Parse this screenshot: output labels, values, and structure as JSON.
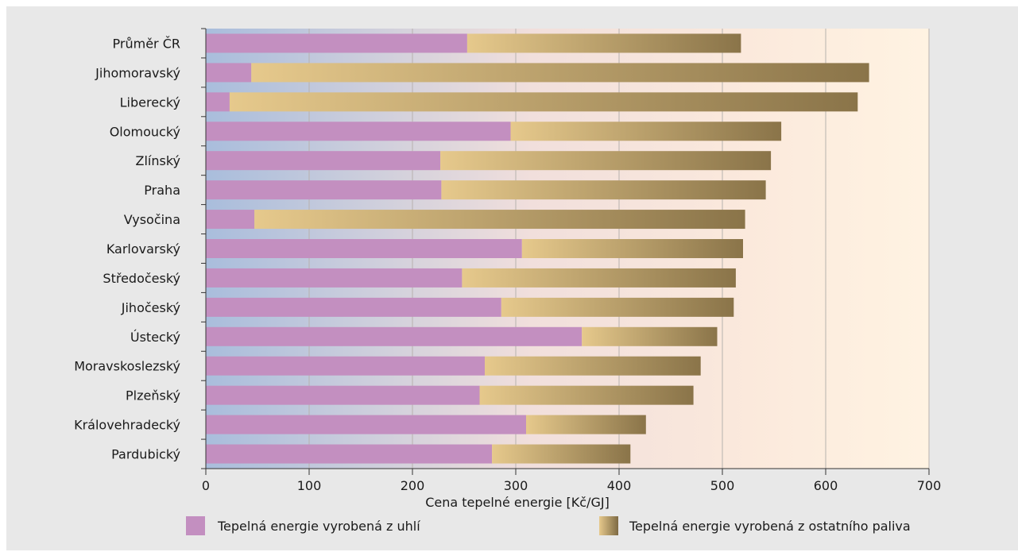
{
  "chart_data": {
    "type": "bar",
    "orientation": "horizontal",
    "stacked": true,
    "categories": [
      "Průměr ČR",
      "Jihomoravský",
      "Liberecký",
      "Olomoucký",
      "Zlínský",
      "Praha",
      "Vysočina",
      "Karlovarský",
      "Středočeský",
      "Jihočeský",
      "Ústecký",
      "Moravskoslezský",
      "Plzeňský",
      "Královehradecký",
      "Pardubický"
    ],
    "series": [
      {
        "name": "Tepelná energie vyrobená z uhlí",
        "values": [
          253,
          44,
          23,
          295,
          227,
          228,
          47,
          306,
          248,
          286,
          364,
          270,
          265,
          310,
          277
        ],
        "color": "#c38fc0"
      },
      {
        "name": "Tepelná energie vyrobená z ostatního paliva",
        "values": [
          265,
          598,
          608,
          262,
          320,
          314,
          475,
          214,
          265,
          225,
          131,
          209,
          207,
          116,
          134
        ],
        "color_start": "#e6c98c",
        "color_end": "#8a7449"
      }
    ],
    "xlabel": "Cena tepelné energie [Kč/GJ]",
    "xlim": [
      0,
      700
    ],
    "xticks": [
      "0",
      "100",
      "200",
      "300",
      "400",
      "500",
      "600",
      "700"
    ],
    "grid": true,
    "legend_position": "bottom"
  }
}
